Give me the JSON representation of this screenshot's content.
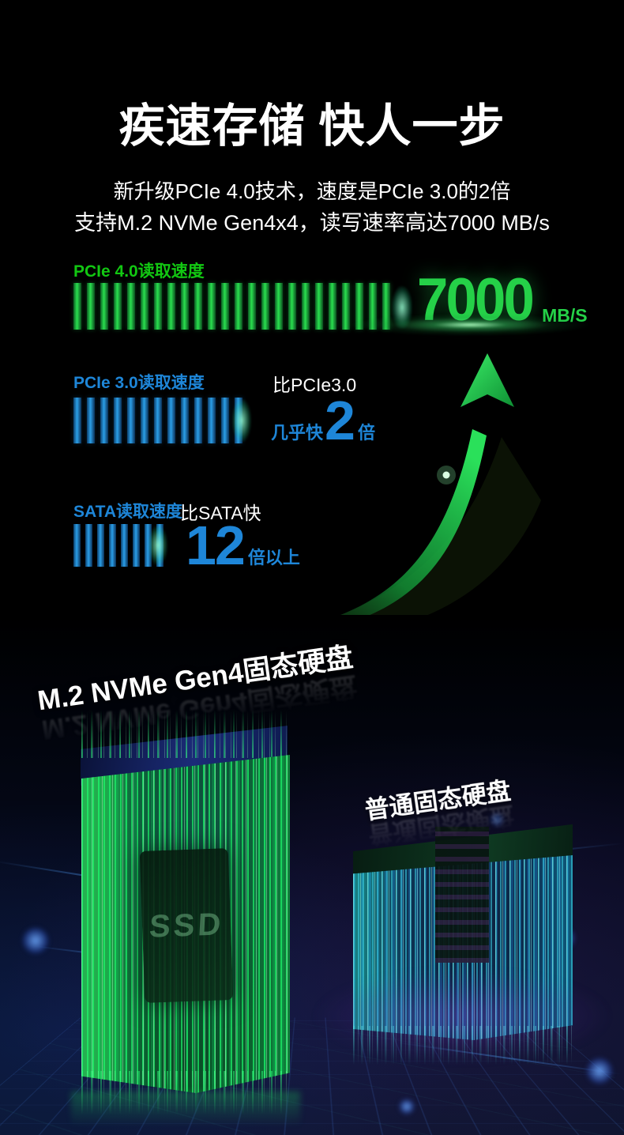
{
  "page": {
    "title": "疾速存储 快人一步",
    "subtitle_line1": "新升级PCIe 4.0技术，速度是PCIe 3.0的2倍",
    "subtitle_line2": "支持M.2 NVMe Gen4x4，读写速率高达7000 MB/s"
  },
  "speed_rows": {
    "pcie4": {
      "label": "PCIe 4.0读取速度",
      "value": "7000",
      "unit": "MB/S",
      "tick_count": 24,
      "color": "#12c712"
    },
    "pcie3": {
      "label": "PCIe 3.0读取速度",
      "compare_label": "比PCIe3.0",
      "value_prefix": "几乎快",
      "value": "2",
      "value_suffix": "倍",
      "tick_count": 13,
      "color": "#1e86d8"
    },
    "sata": {
      "label": "SATA读取速度",
      "compare_label": "比SATA快",
      "value": "12",
      "value_suffix": "倍以上",
      "tick_count": 8,
      "color": "#1e86d8"
    }
  },
  "products": {
    "left": {
      "label": "M.2 NVMe Gen4固态硬盘",
      "chip_text": "SSD"
    },
    "right": {
      "label": "普通固态硬盘"
    }
  },
  "chart_data": {
    "type": "bar",
    "title": "疾速存储 快人一步",
    "categories": [
      "PCIe 4.0读取速度",
      "PCIe 3.0读取速度",
      "SATA读取速度"
    ],
    "series": [
      {
        "name": "PCIe 4.0读取速度",
        "tick_marks": 24,
        "annotation": "7000 MB/S",
        "color": "#25d148"
      },
      {
        "name": "PCIe 3.0读取速度",
        "tick_marks": 13,
        "annotation": "比PCIe3.0几乎快2倍",
        "color": "#2b9fe8"
      },
      {
        "name": "SATA读取速度",
        "tick_marks": 8,
        "annotation": "比SATA快12倍以上",
        "color": "#2b9fe8"
      }
    ],
    "xlabel": "",
    "ylabel": "",
    "grid": false,
    "legend_position": "none",
    "orientation": "horizontal"
  },
  "colors": {
    "green": "#12c712",
    "green_bright": "#25d148",
    "blue": "#1e86d8",
    "white": "#ffffff",
    "background": "#000000"
  }
}
